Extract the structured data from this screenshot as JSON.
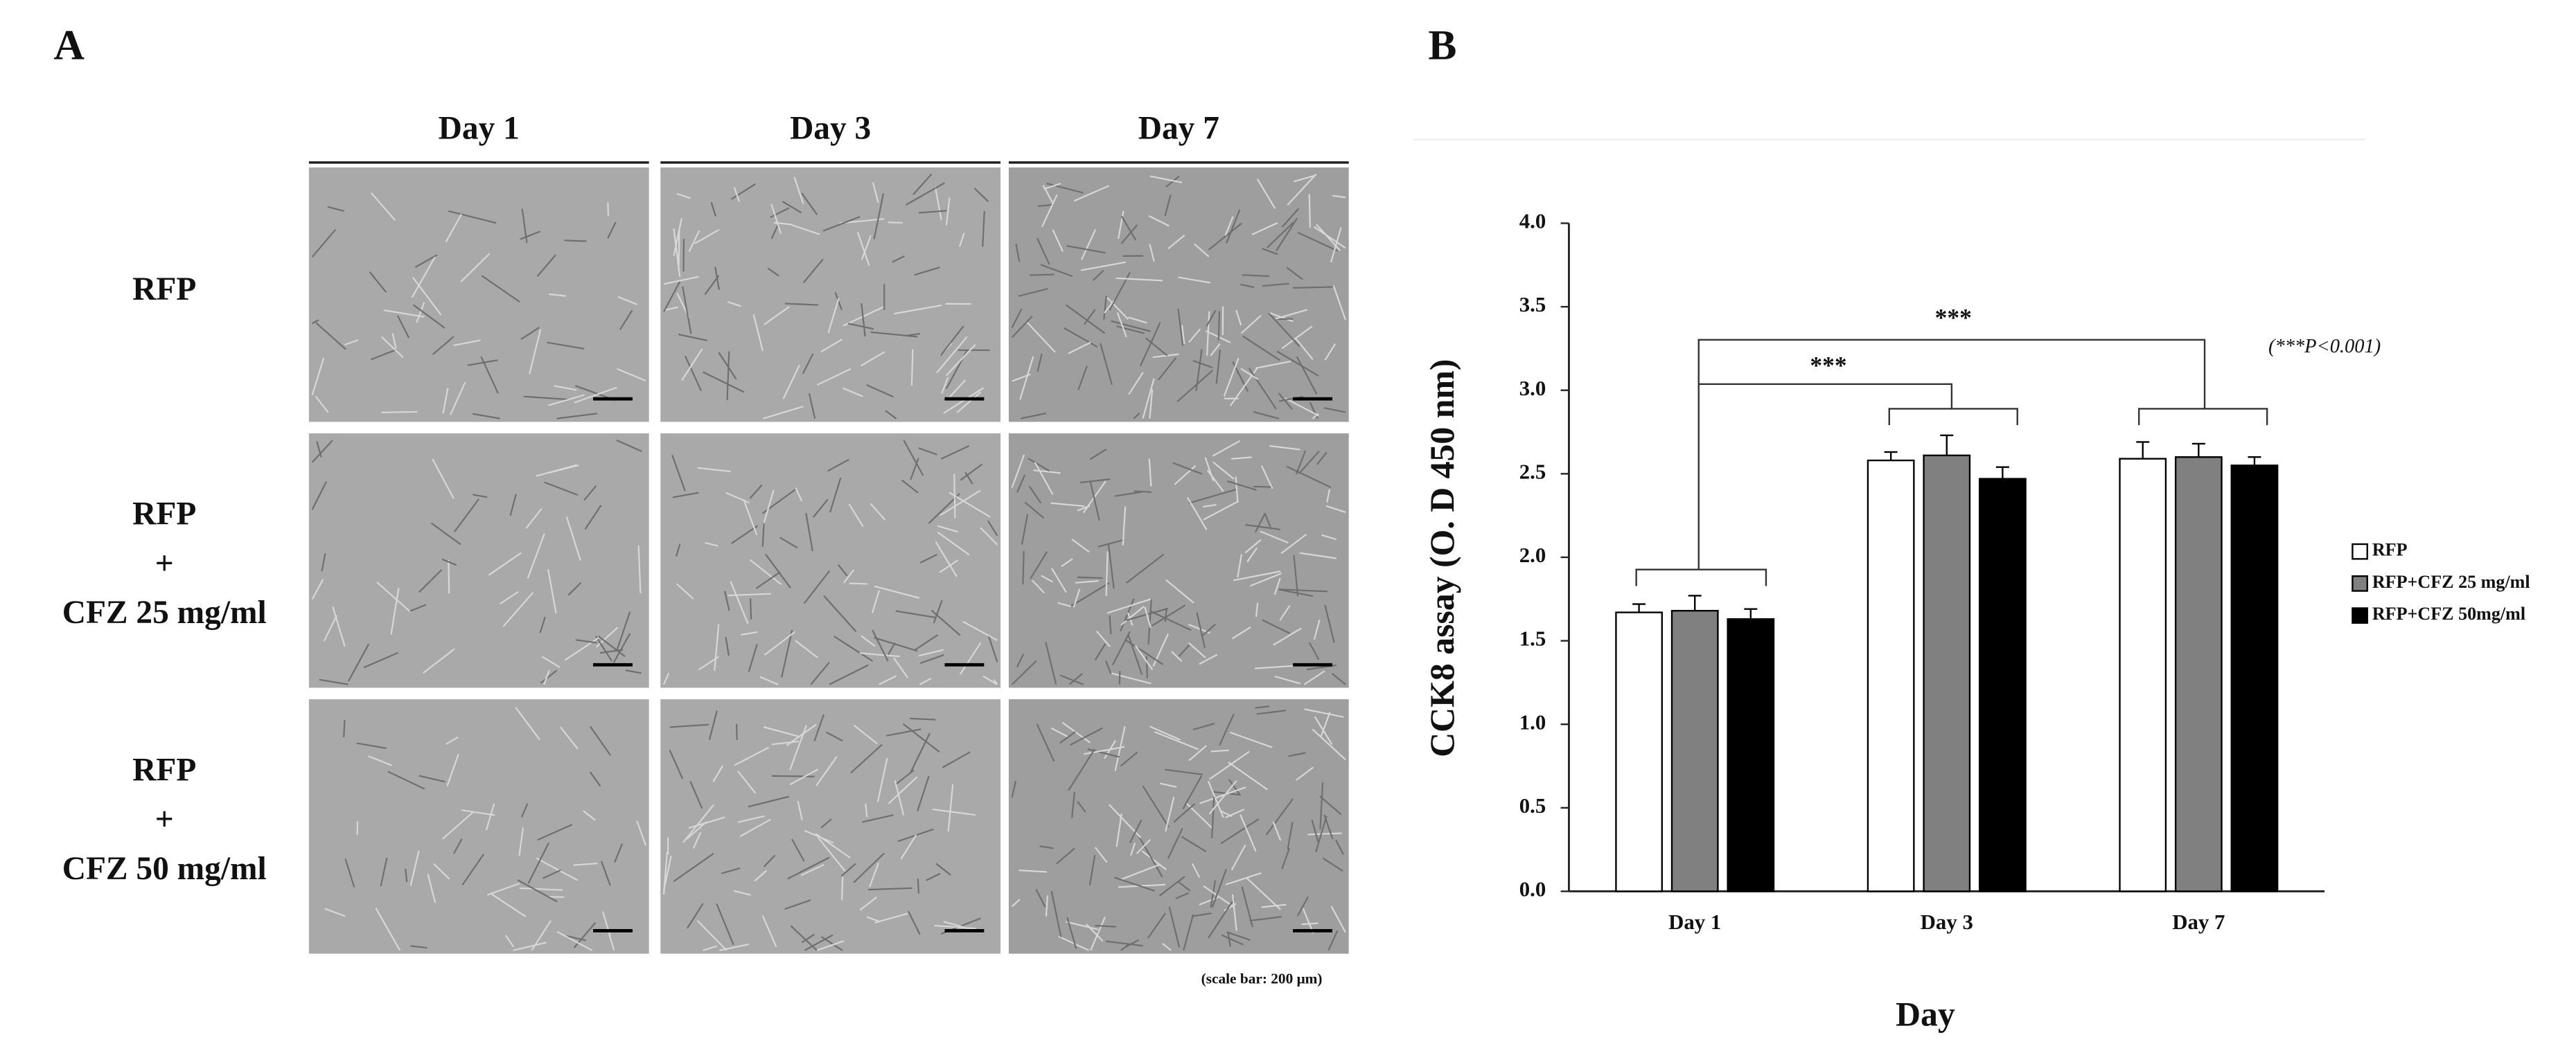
{
  "panel_labels": [
    "A",
    "B"
  ],
  "panel_a": {
    "columns": [
      "Day 1",
      "Day 3",
      "Day 7"
    ],
    "rows": [
      [
        "RFP"
      ],
      [
        "RFP",
        "+",
        "CFZ 25 mg/ml"
      ],
      [
        "RFP",
        "+",
        "CFZ 50 mg/ml"
      ]
    ],
    "scale_note": "(scale bar: 200 μm)"
  },
  "chart_data": {
    "type": "bar",
    "categories": [
      "Day 1",
      "Day 3",
      "Day 7"
    ],
    "series": [
      {
        "name": "RFP",
        "color": "#ffffff",
        "values": [
          1.67,
          2.58,
          2.59
        ],
        "errors": [
          0.05,
          0.05,
          0.1
        ]
      },
      {
        "name": "RFP+CFZ 25 mg/ml",
        "color": "#808080",
        "values": [
          1.68,
          2.61,
          2.6
        ],
        "errors": [
          0.09,
          0.12,
          0.08
        ]
      },
      {
        "name": "RFP+CFZ 50mg/ml",
        "color": "#000000",
        "values": [
          1.63,
          2.47,
          2.55
        ],
        "errors": [
          0.06,
          0.07,
          0.05
        ]
      }
    ],
    "ylim": [
      0,
      4
    ],
    "yticks": [
      {
        "value": 0,
        "label": "0.0"
      },
      0.5,
      {
        "value": 1,
        "label": "1.0"
      },
      1.5,
      {
        "value": 2,
        "label": "2.0"
      },
      2.5,
      {
        "value": 3,
        "label": "3.0"
      },
      3.5,
      {
        "value": 4,
        "label": "4.0"
      }
    ],
    "ylabel": "CCK8 assay (O. D 450 nm)",
    "xlabel": "Day",
    "annotations": [
      "***",
      "***",
      "(***P<0.001)"
    ],
    "legend": "right"
  }
}
